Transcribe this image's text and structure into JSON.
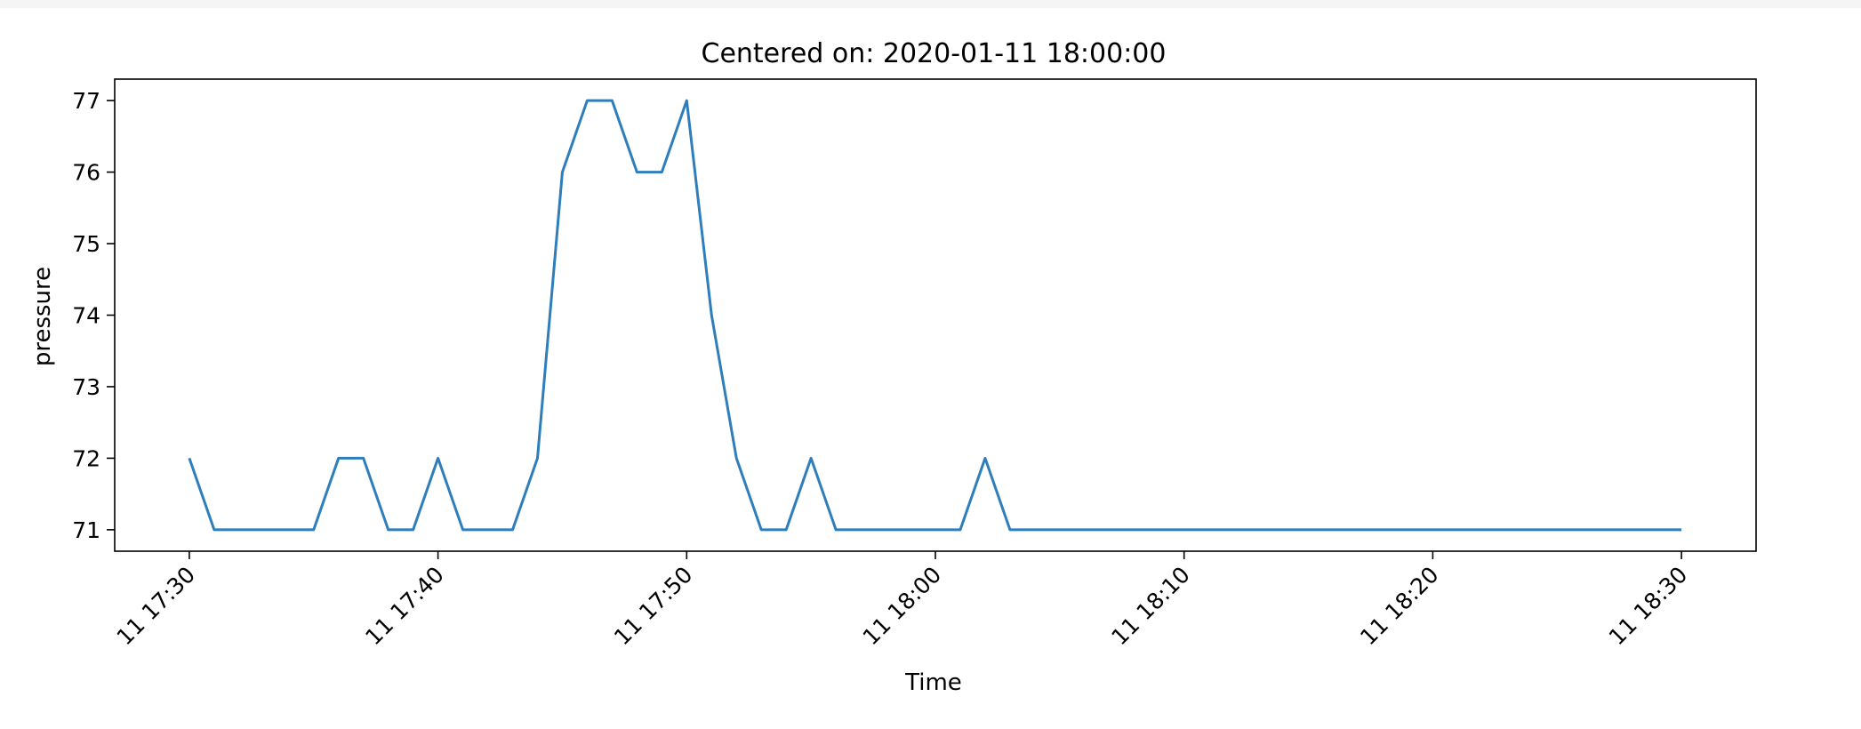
{
  "chart_data": {
    "type": "line",
    "title": "Centered on: 2020-01-11 18:00:00",
    "xlabel": "Time",
    "ylabel": "pressure",
    "x_ticks": [
      "11 17:30",
      "11 17:40",
      "11 17:50",
      "11 18:00",
      "11 18:10",
      "11 18:20",
      "11 18:30"
    ],
    "y_ticks": [
      71,
      72,
      73,
      74,
      75,
      76,
      77
    ],
    "xlim": [
      "2020-01-11 17:27:00",
      "2020-01-11 18:33:00"
    ],
    "ylim": [
      70.7,
      77.3
    ],
    "grid": false,
    "legend": "none",
    "series": [
      {
        "color": "#2f7ebc",
        "x": [
          "2020-01-11 17:30:00",
          "2020-01-11 17:31:00",
          "2020-01-11 17:32:00",
          "2020-01-11 17:33:00",
          "2020-01-11 17:34:00",
          "2020-01-11 17:35:00",
          "2020-01-11 17:36:00",
          "2020-01-11 17:37:00",
          "2020-01-11 17:38:00",
          "2020-01-11 17:39:00",
          "2020-01-11 17:40:00",
          "2020-01-11 17:41:00",
          "2020-01-11 17:42:00",
          "2020-01-11 17:43:00",
          "2020-01-11 17:44:00",
          "2020-01-11 17:45:00",
          "2020-01-11 17:46:00",
          "2020-01-11 17:47:00",
          "2020-01-11 17:48:00",
          "2020-01-11 17:49:00",
          "2020-01-11 17:50:00",
          "2020-01-11 17:51:00",
          "2020-01-11 17:52:00",
          "2020-01-11 17:53:00",
          "2020-01-11 17:54:00",
          "2020-01-11 17:55:00",
          "2020-01-11 17:56:00",
          "2020-01-11 17:57:00",
          "2020-01-11 17:58:00",
          "2020-01-11 17:59:00",
          "2020-01-11 18:00:00",
          "2020-01-11 18:01:00",
          "2020-01-11 18:02:00",
          "2020-01-11 18:03:00",
          "2020-01-11 18:04:00",
          "2020-01-11 18:05:00",
          "2020-01-11 18:06:00",
          "2020-01-11 18:07:00",
          "2020-01-11 18:08:00",
          "2020-01-11 18:09:00",
          "2020-01-11 18:10:00",
          "2020-01-11 18:11:00",
          "2020-01-11 18:12:00",
          "2020-01-11 18:13:00",
          "2020-01-11 18:14:00",
          "2020-01-11 18:15:00",
          "2020-01-11 18:16:00",
          "2020-01-11 18:17:00",
          "2020-01-11 18:18:00",
          "2020-01-11 18:19:00",
          "2020-01-11 18:20:00",
          "2020-01-11 18:21:00",
          "2020-01-11 18:22:00",
          "2020-01-11 18:23:00",
          "2020-01-11 18:24:00",
          "2020-01-11 18:25:00",
          "2020-01-11 18:26:00",
          "2020-01-11 18:27:00",
          "2020-01-11 18:28:00",
          "2020-01-11 18:29:00",
          "2020-01-11 18:30:00"
        ],
        "y": [
          72,
          71,
          71,
          71,
          71,
          71,
          72,
          72,
          71,
          71,
          72,
          71,
          71,
          71,
          72,
          76,
          77,
          77,
          76,
          76,
          77,
          74,
          72,
          71,
          71,
          72,
          71,
          71,
          71,
          71,
          71,
          71,
          72,
          71,
          71,
          71,
          71,
          71,
          71,
          71,
          71,
          71,
          71,
          71,
          71,
          71,
          71,
          71,
          71,
          71,
          71,
          71,
          71,
          71,
          71,
          71,
          71,
          71,
          71,
          71,
          71
        ]
      }
    ]
  }
}
